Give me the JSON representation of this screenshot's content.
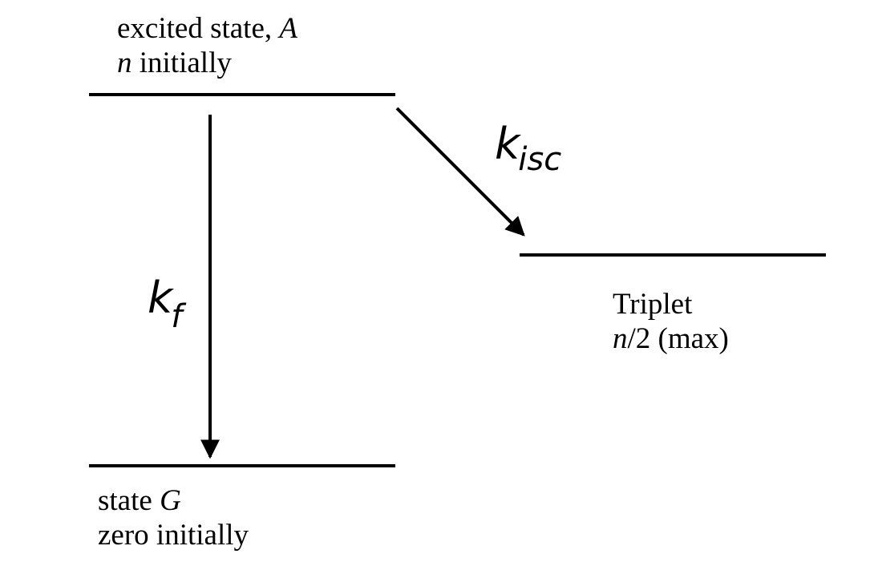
{
  "levels": {
    "excited": {
      "line1_text": "excited state, ",
      "line1_symbol": "A",
      "line2_symbol": "n",
      "line2_text": " initially"
    },
    "ground": {
      "line1_text": "state ",
      "line1_symbol": "G",
      "line2_text": "zero initially"
    },
    "triplet": {
      "line1_text": "Triplet",
      "line2_symbol": "n",
      "line2_text": "/2 (max)"
    }
  },
  "transitions": {
    "fluorescence": {
      "symbol": "k",
      "subscript": "f"
    },
    "intersystem_crossing": {
      "symbol": "k",
      "subscript": "isc"
    }
  },
  "colors": {
    "line": "#000000",
    "background": "#ffffff"
  }
}
